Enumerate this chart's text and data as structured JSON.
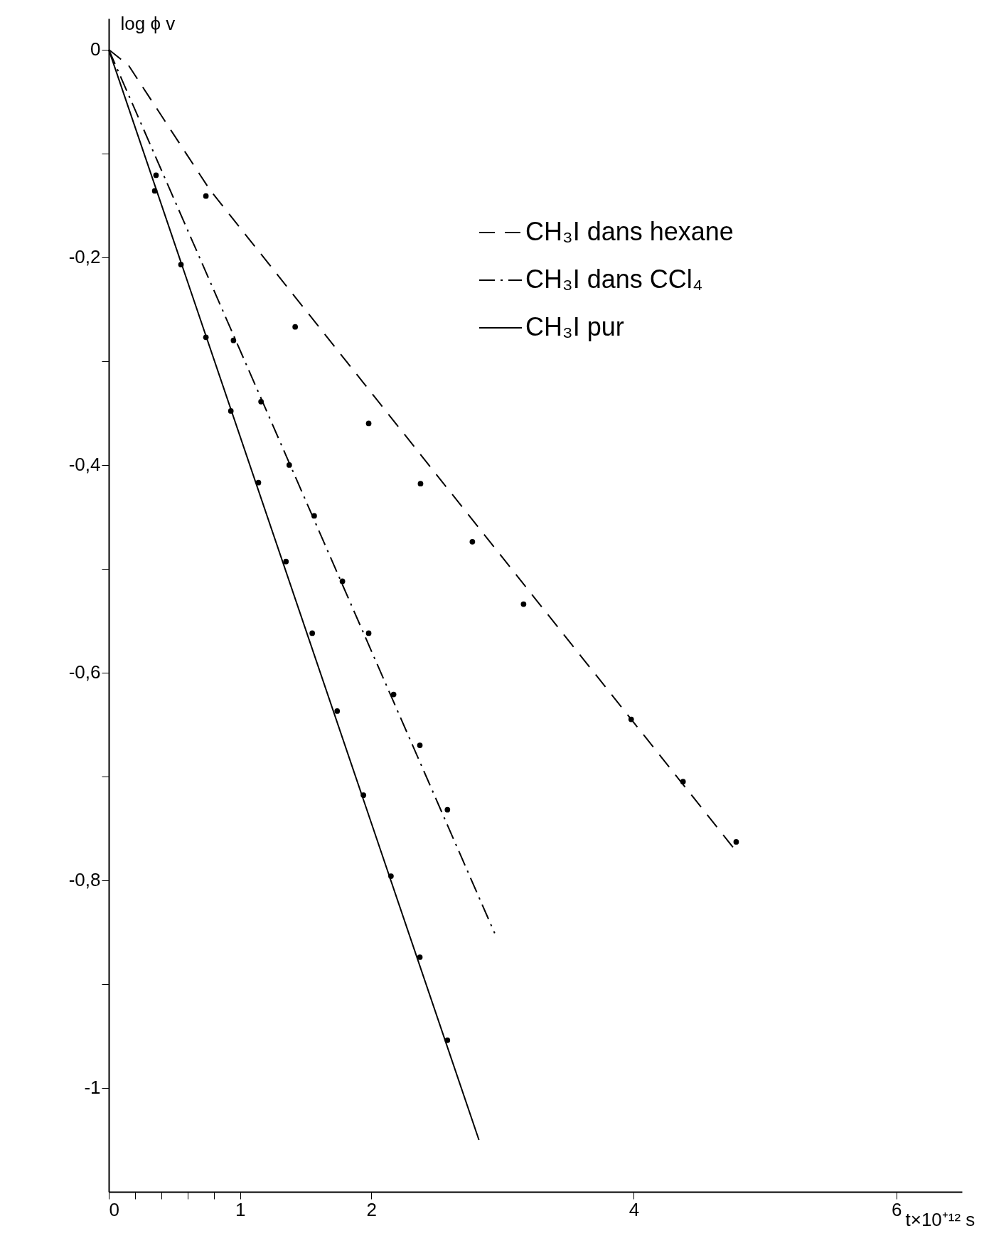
{
  "chart_data": {
    "type": "line",
    "xlabel": "t×10⁺¹² s",
    "ylabel": "log ϕ v",
    "xlim": [
      0,
      6.5
    ],
    "ylim": [
      -1.1,
      0.03
    ],
    "xticks": [
      0,
      {
        "value": 0.2,
        "label": null
      },
      {
        "value": 0.4,
        "label": null
      },
      {
        "value": 0.6,
        "label": null
      },
      {
        "value": 0.8,
        "label": null
      },
      1,
      2,
      4,
      6
    ],
    "yticks": [
      0,
      {
        "value": -0.1,
        "label": null
      },
      {
        "value": -0.2,
        "label": "-0,2"
      },
      {
        "value": -0.3,
        "label": null
      },
      {
        "value": -0.4,
        "label": "-0,4"
      },
      {
        "value": -0.5,
        "label": null
      },
      {
        "value": -0.6,
        "label": "-0,6"
      },
      {
        "value": -0.7,
        "label": null
      },
      {
        "value": -0.8,
        "label": "-0,8"
      },
      {
        "value": -0.9,
        "label": null
      },
      -1
    ],
    "grid": false,
    "legend": "top right",
    "series": [
      {
        "name": "CH₃I dans hexane",
        "type": "line",
        "line_style": "dashed",
        "marker": "none",
        "color": "#000000",
        "x": [
          0,
          0.15,
          0.77,
          4.78
        ],
        "values": [
          0,
          -0.015,
          -0.135,
          -0.772
        ]
      },
      {
        "name": "CH₃I dans CCl₄",
        "type": "line",
        "line_style": "dashdot",
        "marker": "none",
        "color": "#000000",
        "x": [
          0,
          2.94
        ],
        "values": [
          0,
          -0.851
        ]
      },
      {
        "name": "CH₃I pur",
        "type": "line",
        "line_style": "solid",
        "marker": "none",
        "color": "#000000",
        "x": [
          0,
          2.82
        ],
        "values": [
          0,
          -1.05
        ]
      },
      {
        "type": "scatter",
        "marker": "circle",
        "color": "#000000",
        "x": [
          0.74,
          1.42,
          1.98,
          2.375,
          2.77,
          3.16,
          3.98,
          4.375,
          4.78
        ],
        "values": [
          -0.141,
          -0.267,
          -0.36,
          -0.418,
          -0.474,
          -0.534,
          -0.645,
          -0.705,
          -0.763
        ]
      },
      {
        "type": "scatter",
        "marker": "circle",
        "color": "#000000",
        "x": [
          0.36,
          0.95,
          1.16,
          1.375,
          1.565,
          1.78,
          1.98,
          2.17,
          2.37,
          2.58
        ],
        "values": [
          -0.121,
          -0.28,
          -0.339,
          -0.4,
          -0.449,
          -0.512,
          -0.562,
          -0.621,
          -0.67,
          -0.732
        ]
      },
      {
        "type": "scatter",
        "marker": "circle",
        "color": "#000000",
        "x": [
          0.35,
          0.55,
          0.74,
          0.93,
          1.14,
          1.35,
          1.55,
          1.74,
          1.94,
          2.15,
          2.37,
          2.58
        ],
        "values": [
          -0.136,
          -0.207,
          -0.277,
          -0.348,
          -0.417,
          -0.493,
          -0.562,
          -0.637,
          -0.718,
          -0.796,
          -0.874,
          -0.954
        ]
      }
    ]
  }
}
